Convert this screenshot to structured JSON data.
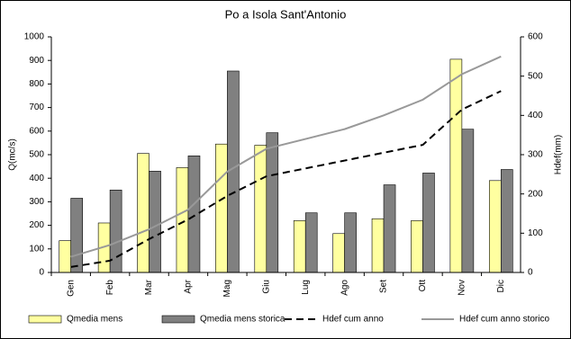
{
  "chart_data": {
    "type": "bar",
    "title": "Po a Isola Sant'Antonio",
    "y_label": "Q(mc/s)",
    "y2_label": "Hdef(mm)",
    "categories": [
      "Gen",
      "Feb",
      "Mar",
      "Apr",
      "Mag",
      "Giu",
      "Lug",
      "Ago",
      "Set",
      "Ott",
      "Nov",
      "Dic"
    ],
    "ylim": [
      0,
      1000
    ],
    "yticks": [
      0,
      100,
      200,
      300,
      400,
      500,
      600,
      700,
      800,
      900,
      1000
    ],
    "y2lim": [
      0,
      600
    ],
    "y2ticks": [
      0,
      100,
      200,
      300,
      400,
      500,
      600
    ],
    "series": [
      {
        "name": "Qmedia mens",
        "type": "bar",
        "color": "#ffffa0",
        "values": [
          135,
          210,
          505,
          445,
          545,
          540,
          220,
          165,
          228,
          220,
          905,
          390
        ]
      },
      {
        "name": "Qmedia mens storica",
        "type": "bar",
        "color": "#808080",
        "values": [
          315,
          350,
          430,
          495,
          855,
          593,
          253,
          253,
          372,
          422,
          608,
          437
        ]
      },
      {
        "name": "Hdef cum anno",
        "type": "line",
        "axis": "y2",
        "dashed": true,
        "color": "#000000",
        "values": [
          14,
          30,
          85,
          135,
          195,
          245,
          265,
          285,
          305,
          325,
          415,
          462
        ]
      },
      {
        "name": "Hdef cum anno storico",
        "type": "line",
        "axis": "y2",
        "dashed": false,
        "color": "#999999",
        "values": [
          40,
          70,
          110,
          160,
          257,
          315,
          340,
          365,
          400,
          440,
          505,
          550
        ]
      }
    ]
  }
}
